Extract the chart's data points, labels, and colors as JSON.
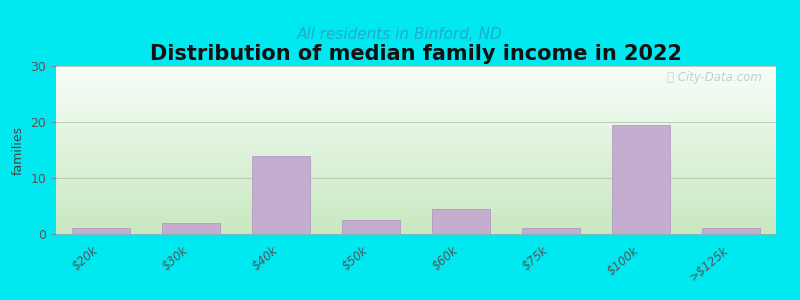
{
  "title": "Distribution of median family income in 2022",
  "subtitle": "All residents in Binford, ND",
  "categories": [
    "$20k",
    "$30k",
    "$40k",
    "$50k",
    "$60k",
    "$75k",
    "$100k",
    ">$125k"
  ],
  "values": [
    1,
    2,
    14,
    2.5,
    4.5,
    1,
    19.5,
    1
  ],
  "bar_color": "#c4aed0",
  "bar_edge_color": "#b090c0",
  "ylabel": "families",
  "ylim": [
    0,
    30
  ],
  "yticks": [
    0,
    10,
    20,
    30
  ],
  "bg_outer": "#00e8f0",
  "bg_plot_top": "#f8fdf8",
  "bg_plot_bottom": "#c8e8c0",
  "title_fontsize": 15,
  "subtitle_fontsize": 11,
  "subtitle_color": "#22aacc",
  "watermark_text": "ⓘ City-Data.com",
  "grid_color": "#bbccbb",
  "watermark_color": "#b0ccd0"
}
